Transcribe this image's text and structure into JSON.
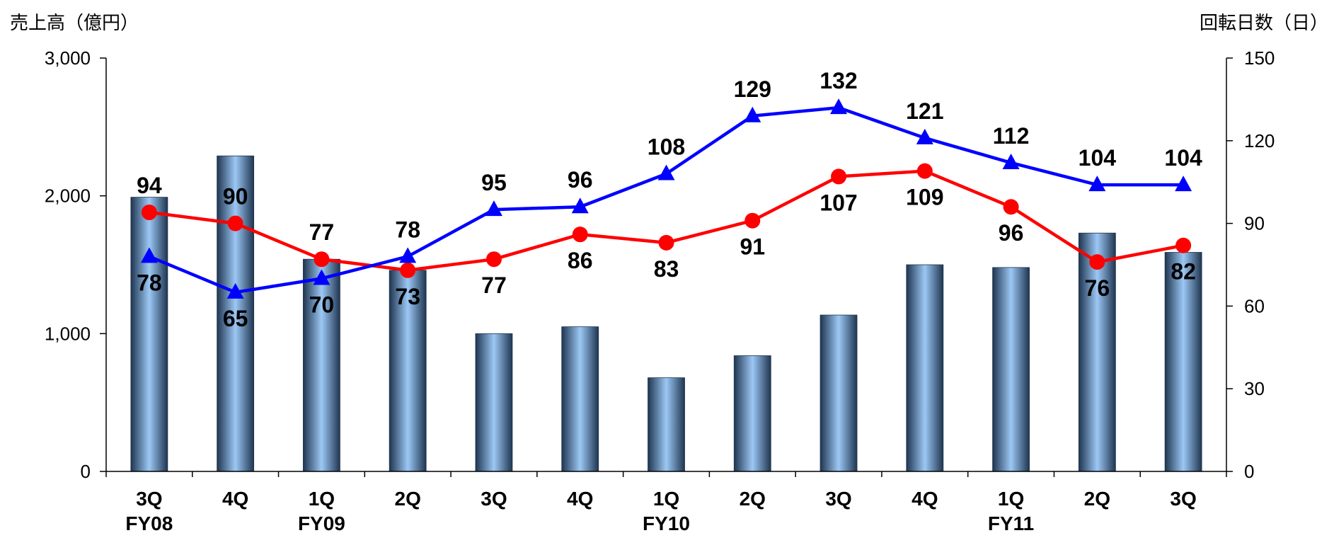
{
  "chart_data": {
    "type": "bar",
    "ylabel_left": "売上高（億円）",
    "ylabel_right": "回転日数（日）",
    "categories": [
      "3Q",
      "4Q",
      "1Q",
      "2Q",
      "3Q",
      "4Q",
      "1Q",
      "2Q",
      "3Q",
      "4Q",
      "1Q",
      "2Q",
      "3Q"
    ],
    "fiscal_year_labels": [
      {
        "index": 0,
        "label": "FY08"
      },
      {
        "index": 2,
        "label": "FY09"
      },
      {
        "index": 6,
        "label": "FY10"
      },
      {
        "index": 10,
        "label": "FY11"
      }
    ],
    "y_left": {
      "min": 0,
      "max": 3000,
      "ticks": [
        0,
        1000,
        2000,
        3000
      ],
      "tick_labels": [
        "0",
        "1,000",
        "2,000",
        "3,000"
      ]
    },
    "y_right": {
      "min": 0,
      "max": 150,
      "ticks": [
        0,
        30,
        60,
        90,
        120,
        150
      ],
      "tick_labels": [
        "0",
        "30",
        "60",
        "90",
        "120",
        "150"
      ]
    },
    "grid": false,
    "series": [
      {
        "type": "bar",
        "axis": "left",
        "color": "#9cc8f5",
        "values": [
          1990,
          2290,
          1540,
          1460,
          1000,
          1050,
          680,
          840,
          1135,
          1500,
          1480,
          1730,
          1590
        ]
      },
      {
        "type": "line",
        "axis": "right",
        "color": "#ff0000",
        "marker": "circle",
        "values": [
          94,
          90,
          77,
          73,
          77,
          86,
          83,
          91,
          107,
          109,
          96,
          76,
          82
        ]
      },
      {
        "type": "line",
        "axis": "right",
        "color": "#0000ff",
        "marker": "triangle",
        "values": [
          78,
          65,
          70,
          78,
          95,
          96,
          108,
          129,
          132,
          121,
          112,
          104,
          104
        ]
      }
    ]
  }
}
